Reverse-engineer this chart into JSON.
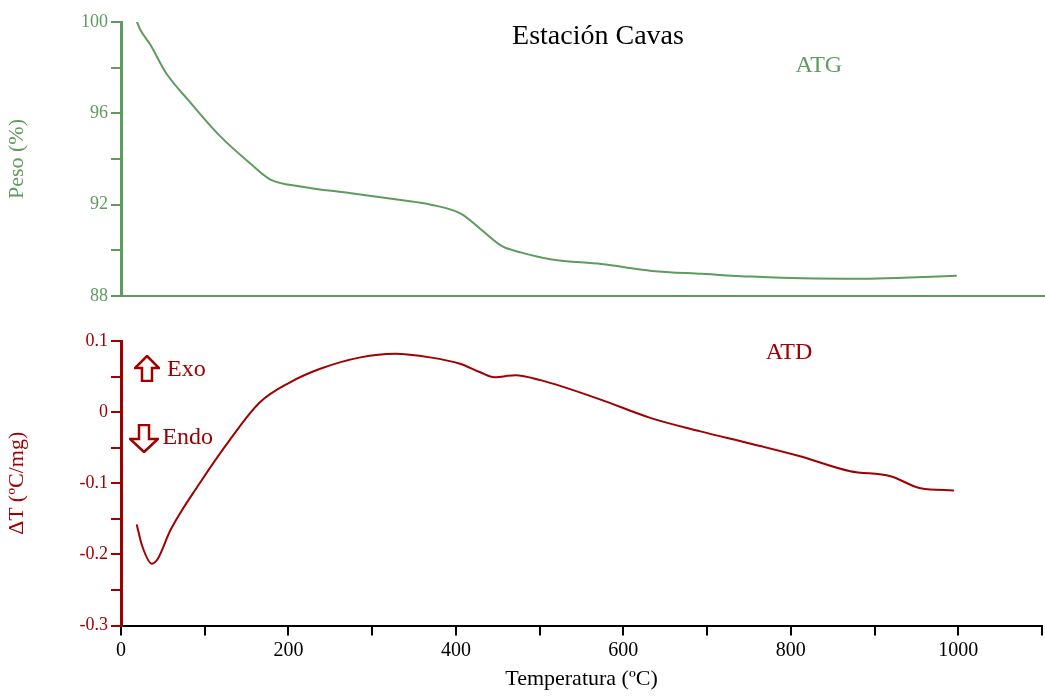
{
  "chart_data": [
    {
      "type": "line",
      "title": "Estación Cavas",
      "ylabel": "Peso (%)",
      "annotations": [
        "ATG"
      ],
      "legend": false,
      "marker": "none",
      "line_style": "solid",
      "tick_labels": "y",
      "xlim": [
        0,
        1100
      ],
      "ylim": [
        88,
        100
      ],
      "yticks": [
        88,
        {
          "value": 90,
          "label": null
        },
        92,
        {
          "value": 94,
          "label": null
        },
        96,
        {
          "value": 98,
          "label": null
        },
        100
      ],
      "series": [
        {
          "color": "#5f9a5f",
          "x": [
            19,
            23,
            35,
            53,
            82,
            118,
            154,
            178,
            214,
            274,
            333,
            369,
            405,
            429,
            453,
            477,
            513,
            572,
            632,
            692,
            751,
            811,
            883,
            931,
            994
          ],
          "values": [
            100.0,
            99.66,
            99.0,
            97.8,
            96.5,
            95.0,
            93.8,
            93.1,
            92.8,
            92.5,
            92.2,
            92.0,
            91.6,
            90.9,
            90.2,
            89.9,
            89.6,
            89.4,
            89.1,
            88.97,
            88.85,
            88.78,
            88.76,
            88.8,
            88.89
          ]
        }
      ]
    },
    {
      "type": "line",
      "xlabel": "Temperatura (ºC)",
      "ylabel": "ΔT (ºC/mg)",
      "annotations": [
        "ATD",
        "Exo",
        "Endo"
      ],
      "legend": false,
      "marker": "none",
      "line_style": "solid",
      "xlim": [
        0,
        1100
      ],
      "xticks": [
        0,
        {
          "value": 100,
          "label": null
        },
        200,
        {
          "value": 300,
          "label": null
        },
        400,
        {
          "value": 500,
          "label": null
        },
        600,
        {
          "value": 700,
          "label": null
        },
        800,
        {
          "value": 900,
          "label": null
        },
        1000,
        {
          "value": 1100,
          "label": null
        }
      ],
      "ylim": [
        -0.3,
        0.1
      ],
      "yticks": [
        {
          "value": -0.3,
          "label": "-0.3"
        },
        {
          "value": -0.25,
          "label": null
        },
        {
          "value": -0.2,
          "label": "-0.2"
        },
        {
          "value": -0.15,
          "label": null
        },
        {
          "value": -0.1,
          "label": "-0.1"
        },
        {
          "value": -0.05,
          "label": null
        },
        0,
        {
          "value": 0.05,
          "label": null
        },
        0.1
      ],
      "series": [
        {
          "color": "#a00000",
          "x": [
            19,
            25,
            37,
            44,
            59,
            94,
            130,
            166,
            202,
            238,
            286,
            327,
            369,
            405,
            429,
            446,
            471,
            501,
            572,
            632,
            692,
            751,
            811,
            871,
            919,
            955,
            994
          ],
          "values": [
            -0.159,
            -0.187,
            -0.213,
            -0.206,
            -0.166,
            -0.1,
            -0.039,
            0.014,
            0.042,
            0.061,
            0.077,
            0.082,
            0.077,
            0.068,
            0.056,
            0.049,
            0.052,
            0.045,
            0.018,
            -0.008,
            -0.027,
            -0.044,
            -0.062,
            -0.083,
            -0.09,
            -0.107,
            -0.11
          ]
        }
      ]
    }
  ]
}
